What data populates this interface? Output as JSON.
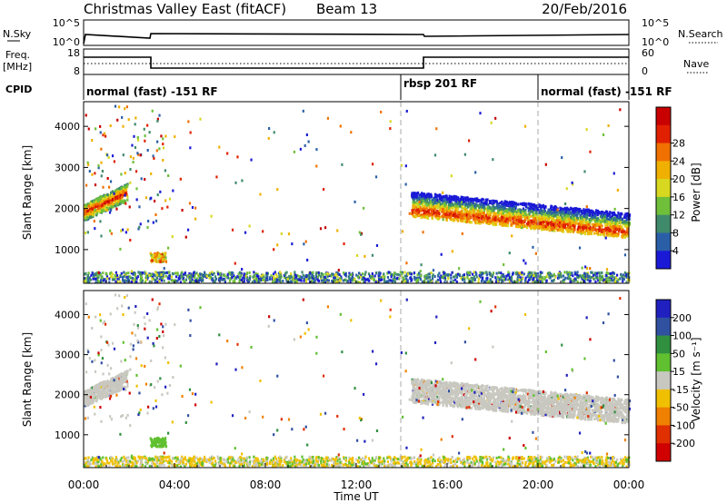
{
  "header": {
    "title": "Christmas Valley East (fitACF)",
    "beam": "Beam 13",
    "date": "20/Feb/2016"
  },
  "panels": {
    "nsky": {
      "label": "N.Sky",
      "right_label": "N.Search",
      "ticks_left": [
        "10^5",
        "10^0"
      ],
      "ticks_right": [
        "10^5",
        "10^0"
      ]
    },
    "freq": {
      "label_line1": "Freq.",
      "label_line2": "[MHz]",
      "right_label": "Nave",
      "ticks_left": [
        "18",
        "8"
      ],
      "ticks_right": [
        "60",
        "0"
      ]
    },
    "cpid": {
      "label": "CPID",
      "segments": [
        {
          "label": "normal (fast) -151 RF",
          "start_h": 0
        },
        {
          "label": "rbsp 201 RF",
          "start_h": 14
        },
        {
          "label": "normal (fast) -151 RF",
          "start_h": 20
        }
      ]
    }
  },
  "chart_data": [
    {
      "type": "heatmap",
      "name": "power",
      "ylabel": "Slant Range [km]",
      "colorbar_label": "Power [dB]",
      "x_range_hours": [
        0,
        24
      ],
      "ylim": [
        180,
        4600
      ],
      "yticks": [
        "1000",
        "2000",
        "3000",
        "4000"
      ],
      "colorbar_ticks": [
        "4",
        "8",
        "12",
        "16",
        "20",
        "24",
        "28"
      ],
      "colorbar_colors": [
        "#1a1ad6",
        "#2a5fa8",
        "#3f8a6a",
        "#6fbf3a",
        "#d8d820",
        "#f0b000",
        "#f07000",
        "#e02000",
        "#c80000"
      ],
      "features": [
        {
          "t0": 0,
          "t1": 1.8,
          "r0": 1900,
          "r1": 2500,
          "desc": "early strong echo"
        },
        {
          "t0": 2.8,
          "t1": 3.6,
          "r0": 700,
          "r1": 900,
          "desc": "patch"
        },
        {
          "t0": 14.5,
          "t1": 24,
          "r0": 1500,
          "r1": 2300,
          "desc": "main band"
        }
      ]
    },
    {
      "type": "heatmap",
      "name": "velocity",
      "ylabel": "Slant Range [km]",
      "colorbar_label": "Velocity [m s⁻¹]",
      "x_range_hours": [
        0,
        24
      ],
      "ylim": [
        180,
        4600
      ],
      "yticks": [
        "1000",
        "2000",
        "3000",
        "4000"
      ],
      "colorbar_ticks": [
        "200",
        "100",
        "50",
        "15",
        "-15",
        "-50",
        "-100",
        "-200"
      ],
      "colorbar_colors": [
        "#2020c0",
        "#3050a0",
        "#309040",
        "#60c030",
        "#c8c8c0",
        "#f0c000",
        "#f08000",
        "#e03000",
        "#d00000"
      ]
    }
  ],
  "time_axis": {
    "label": "Time UT",
    "ticks": [
      "00:00",
      "04:00",
      "08:00",
      "12:00",
      "16:00",
      "20:00",
      "00:00"
    ]
  }
}
